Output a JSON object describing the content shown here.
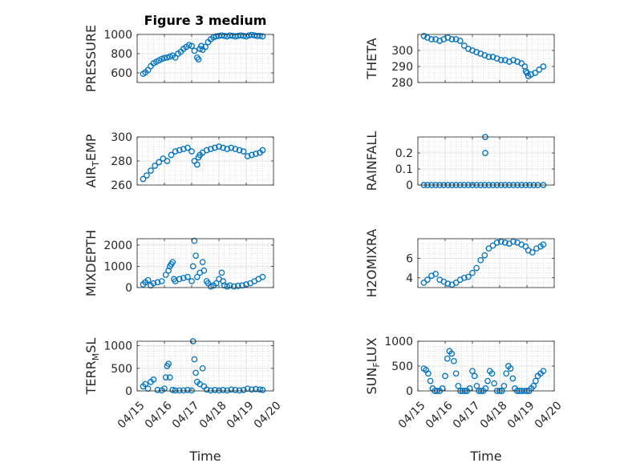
{
  "figure": {
    "title": "Figure 3 medium",
    "marker_color": "#0072BD",
    "axis_color": "#262626",
    "grid": "on"
  },
  "x_axis": {
    "label": "Time",
    "ticks": [
      "04/15",
      "04/16",
      "04/17",
      "04/18",
      "04/19",
      "04/20"
    ]
  },
  "chart_data": [
    {
      "type": "scatter",
      "ylabel": "PRESSURE",
      "ylim": [
        500,
        1000
      ],
      "yticks": [
        600,
        800,
        1000
      ],
      "xlim": [
        0,
        5
      ],
      "x": [
        0.22,
        0.3,
        0.4,
        0.5,
        0.6,
        0.7,
        0.8,
        0.9,
        1.0,
        1.1,
        1.2,
        1.3,
        1.4,
        1.5,
        1.6,
        1.7,
        1.8,
        1.9,
        2.0,
        2.1,
        2.2,
        2.25,
        2.3,
        2.35,
        2.4,
        2.5,
        2.6,
        2.7,
        2.8,
        2.9,
        3.0,
        3.1,
        3.2,
        3.3,
        3.4,
        3.5,
        3.6,
        3.7,
        3.8,
        3.9,
        4.0,
        4.1,
        4.2,
        4.3,
        4.4,
        4.5,
        4.6
      ],
      "y": [
        590,
        605,
        630,
        670,
        700,
        715,
        730,
        745,
        755,
        760,
        770,
        780,
        760,
        800,
        820,
        850,
        870,
        890,
        880,
        830,
        760,
        740,
        850,
        880,
        840,
        870,
        920,
        950,
        970,
        980,
        985,
        990,
        985,
        980,
        990,
        985,
        980,
        985,
        990,
        985,
        980,
        990,
        995,
        990,
        985,
        985,
        980
      ]
    },
    {
      "type": "scatter",
      "ylabel": "THETA",
      "ylim": [
        280,
        310
      ],
      "yticks": [
        280,
        290,
        300
      ],
      "xlim": [
        0,
        5
      ],
      "x": [
        0.22,
        0.35,
        0.5,
        0.65,
        0.8,
        0.95,
        1.1,
        1.25,
        1.4,
        1.55,
        1.7,
        1.85,
        2.0,
        2.15,
        2.3,
        2.45,
        2.6,
        2.75,
        2.9,
        3.05,
        3.2,
        3.35,
        3.5,
        3.65,
        3.8,
        3.92,
        3.96,
        4.0,
        4.05,
        4.15,
        4.3,
        4.45,
        4.6
      ],
      "y": [
        309,
        308,
        307,
        307,
        306,
        307,
        308,
        307,
        307,
        306,
        303,
        301,
        300,
        299,
        298,
        297,
        296,
        296,
        295,
        294,
        294,
        293,
        294,
        293,
        292,
        290,
        287,
        286,
        284,
        285,
        286,
        288,
        290
      ]
    },
    {
      "type": "scatter",
      "ylabel": "AIR_TEMP",
      "ylim": [
        260,
        300
      ],
      "yticks": [
        260,
        280,
        300
      ],
      "xlim": [
        0,
        5
      ],
      "x": [
        0.22,
        0.35,
        0.5,
        0.65,
        0.8,
        0.95,
        1.1,
        1.25,
        1.4,
        1.55,
        1.7,
        1.85,
        2.0,
        2.1,
        2.2,
        2.25,
        2.3,
        2.4,
        2.55,
        2.7,
        2.85,
        3.0,
        3.15,
        3.3,
        3.45,
        3.6,
        3.75,
        3.9,
        4.05,
        4.2,
        4.35,
        4.5,
        4.6
      ],
      "y": [
        265,
        268,
        272,
        276,
        279,
        282,
        280,
        285,
        288,
        289,
        290,
        291,
        288,
        280,
        277,
        283,
        285,
        287,
        289,
        290,
        291,
        292,
        291,
        290,
        291,
        290,
        289,
        288,
        284,
        285,
        286,
        287,
        289
      ]
    },
    {
      "type": "scatter",
      "ylabel": "RAINFALL",
      "ylim": [
        0,
        0.3
      ],
      "yticks": [
        0,
        0.1,
        0.2
      ],
      "xlim": [
        0,
        5
      ],
      "x": [
        0.22,
        0.35,
        0.5,
        0.65,
        0.8,
        0.95,
        1.1,
        1.25,
        1.4,
        1.55,
        1.7,
        1.85,
        2.0,
        2.15,
        2.3,
        2.45,
        2.6,
        2.75,
        2.9,
        3.05,
        3.2,
        3.35,
        3.5,
        3.65,
        3.8,
        3.95,
        4.1,
        4.25,
        4.4,
        4.6,
        2.47,
        2.47
      ],
      "y": [
        0,
        0,
        0,
        0,
        0,
        0,
        0,
        0,
        0,
        0,
        0,
        0,
        0,
        0,
        0,
        0,
        0,
        0,
        0,
        0,
        0,
        0,
        0,
        0,
        0,
        0,
        0,
        0,
        0,
        0,
        0.2,
        0.3
      ]
    },
    {
      "type": "scatter",
      "ylabel": "MIXDEPTH",
      "ylim": [
        0,
        2300
      ],
      "yticks": [
        0,
        1000,
        2000
      ],
      "xlim": [
        0,
        5
      ],
      "x": [
        0.22,
        0.3,
        0.4,
        0.5,
        0.6,
        0.75,
        0.9,
        1.05,
        1.15,
        1.2,
        1.25,
        1.3,
        1.35,
        1.4,
        1.55,
        1.7,
        1.85,
        2.0,
        2.05,
        2.1,
        2.15,
        2.2,
        2.3,
        2.4,
        2.45,
        2.55,
        2.6,
        2.7,
        2.8,
        2.9,
        3.0,
        3.1,
        3.15,
        3.2,
        3.3,
        3.4,
        3.55,
        3.7,
        3.85,
        4.0,
        4.15,
        4.3,
        4.45,
        4.6
      ],
      "y": [
        150,
        250,
        350,
        100,
        200,
        250,
        300,
        600,
        800,
        1000,
        1100,
        1200,
        400,
        300,
        400,
        450,
        500,
        300,
        1000,
        2200,
        1500,
        500,
        700,
        1200,
        800,
        300,
        200,
        50,
        100,
        200,
        400,
        700,
        300,
        100,
        50,
        100,
        50,
        80,
        100,
        150,
        200,
        300,
        400,
        500
      ]
    },
    {
      "type": "scatter",
      "ylabel": "H2OMIXRA",
      "ylim": [
        3,
        8
      ],
      "yticks": [
        4,
        6
      ],
      "xlim": [
        0,
        5
      ],
      "x": [
        0.22,
        0.35,
        0.5,
        0.65,
        0.8,
        0.95,
        1.1,
        1.25,
        1.4,
        1.55,
        1.7,
        1.85,
        2.0,
        2.15,
        2.3,
        2.45,
        2.6,
        2.75,
        2.9,
        3.05,
        3.2,
        3.35,
        3.5,
        3.65,
        3.8,
        3.95,
        4.05,
        4.2,
        4.35,
        4.5,
        4.6
      ],
      "y": [
        3.5,
        3.8,
        4.2,
        4.4,
        3.8,
        3.6,
        3.4,
        3.3,
        3.5,
        3.8,
        4.0,
        4.1,
        4.5,
        5.0,
        5.8,
        6.3,
        7.0,
        7.3,
        7.6,
        7.7,
        7.6,
        7.5,
        7.7,
        7.6,
        7.4,
        7.2,
        6.8,
        6.6,
        7.0,
        7.2,
        7.4
      ]
    },
    {
      "type": "scatter",
      "ylabel": "TERR_MSL",
      "ylim": [
        0,
        1100
      ],
      "yticks": [
        0,
        500,
        1000
      ],
      "xlim": [
        0,
        5
      ],
      "x": [
        0.22,
        0.3,
        0.4,
        0.5,
        0.6,
        0.75,
        0.9,
        1.0,
        1.05,
        1.1,
        1.15,
        1.2,
        1.3,
        1.4,
        1.55,
        1.7,
        1.85,
        2.0,
        2.05,
        2.1,
        2.15,
        2.2,
        2.3,
        2.4,
        2.45,
        2.55,
        2.7,
        2.85,
        3.0,
        3.15,
        3.3,
        3.45,
        3.6,
        3.75,
        3.9,
        4.05,
        4.2,
        4.35,
        4.5,
        4.6
      ],
      "y": [
        100,
        150,
        50,
        200,
        250,
        20,
        10,
        50,
        300,
        550,
        600,
        300,
        20,
        10,
        10,
        10,
        20,
        10,
        1100,
        700,
        400,
        200,
        150,
        500,
        100,
        30,
        10,
        20,
        10,
        20,
        10,
        30,
        20,
        10,
        20,
        50,
        30,
        40,
        30,
        20
      ]
    },
    {
      "type": "scatter",
      "ylabel": "SUN_FLUX",
      "ylim": [
        0,
        1000
      ],
      "yticks": [
        0,
        500,
        1000
      ],
      "xlim": [
        0,
        5
      ],
      "x": [
        0.22,
        0.3,
        0.38,
        0.46,
        0.54,
        0.62,
        0.7,
        0.8,
        0.9,
        1.0,
        1.08,
        1.16,
        1.24,
        1.32,
        1.4,
        1.48,
        1.56,
        1.64,
        1.72,
        1.8,
        1.9,
        2.0,
        2.08,
        2.16,
        2.24,
        2.32,
        2.4,
        2.48,
        2.56,
        2.64,
        2.72,
        2.8,
        2.9,
        3.0,
        3.08,
        3.16,
        3.24,
        3.32,
        3.4,
        3.48,
        3.56,
        3.64,
        3.72,
        3.8,
        3.9,
        4.0,
        4.08,
        4.16,
        4.24,
        4.32,
        4.4,
        4.5,
        4.6
      ],
      "y": [
        450,
        420,
        350,
        200,
        50,
        0,
        0,
        0,
        50,
        300,
        650,
        800,
        750,
        600,
        350,
        100,
        0,
        0,
        0,
        0,
        50,
        400,
        300,
        100,
        0,
        0,
        0,
        50,
        200,
        400,
        350,
        150,
        0,
        0,
        0,
        100,
        350,
        500,
        450,
        250,
        50,
        0,
        0,
        0,
        0,
        0,
        0,
        50,
        100,
        200,
        300,
        350,
        400
      ]
    }
  ]
}
